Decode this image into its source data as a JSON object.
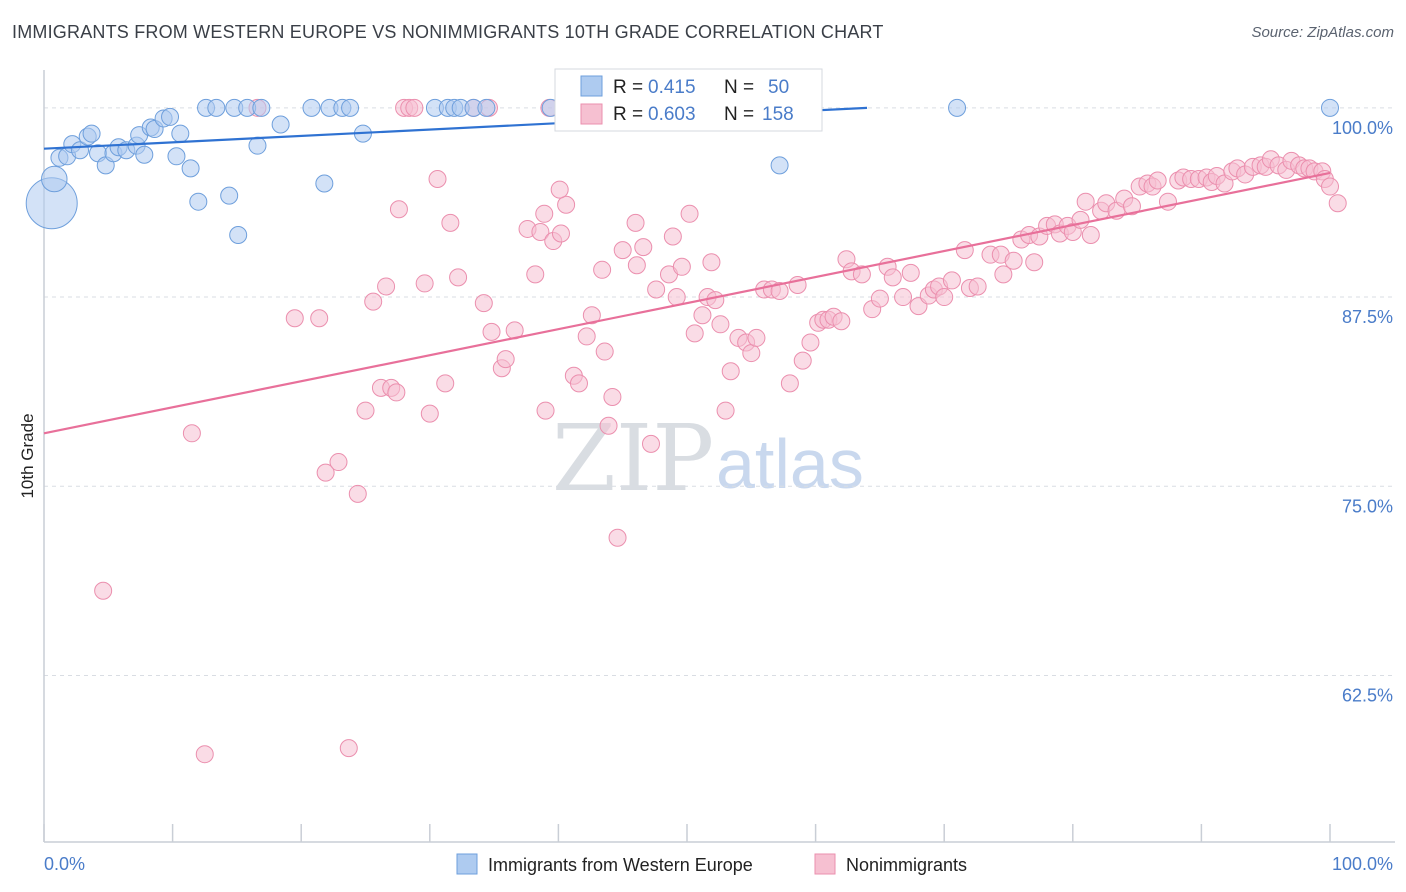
{
  "title": "IMMIGRANTS FROM WESTERN EUROPE VS NONIMMIGRANTS 10TH GRADE CORRELATION CHART",
  "source": "Source: ZipAtlas.com",
  "watermark": {
    "zip": "ZIP",
    "atlas": "atlas"
  },
  "colors": {
    "blue_fill": "#aecbf0",
    "blue_stroke": "#6e9fdc",
    "blue_line": "#2f72d2",
    "pink_fill": "#f6c0d1",
    "pink_stroke": "#eb8fae",
    "pink_line": "#e8709a",
    "grid": "#d9dde3",
    "tick_text": "#4a7cc9"
  },
  "stats_box": {
    "rows": [
      {
        "r_label": "R =",
        "r_value": "0.415",
        "n_label": "N =",
        "n_value": "50"
      },
      {
        "r_label": "R =",
        "r_value": "0.603",
        "n_label": "N =",
        "n_value": "158"
      }
    ]
  },
  "chart_data": {
    "type": "scatter",
    "title": "IMMIGRANTS FROM WESTERN EUROPE VS NONIMMIGRANTS 10TH GRADE CORRELATION CHART",
    "xlabel": "",
    "ylabel": "10th Grade",
    "xlim": [
      0,
      100
    ],
    "ylim": [
      51.5,
      102.5
    ],
    "x_tick_labels": [
      "0.0%",
      "100.0%"
    ],
    "y_ticks": [
      100.0,
      87.5,
      75.0,
      62.5
    ],
    "y_tick_labels": [
      "100.0%",
      "87.5%",
      "75.0%",
      "62.5%"
    ],
    "grid": true,
    "legend_position": "bottom-center",
    "series": [
      {
        "name": "Immigrants from Western Europe",
        "color": "#aecbf0",
        "trend": {
          "x": [
            0,
            64
          ],
          "y": [
            97.3,
            100.0
          ]
        },
        "points": [
          [
            0.6,
            93.7,
            3
          ],
          [
            0.8,
            95.3,
            1.5
          ],
          [
            1.2,
            96.7,
            1
          ],
          [
            1.8,
            96.8,
            1
          ],
          [
            2.2,
            97.6,
            1
          ],
          [
            2.8,
            97.2,
            1
          ],
          [
            3.4,
            98.1,
            1
          ],
          [
            3.7,
            98.3,
            1
          ],
          [
            4.2,
            97.0,
            1
          ],
          [
            4.8,
            96.2,
            1
          ],
          [
            5.4,
            97.0,
            1
          ],
          [
            5.8,
            97.4,
            1
          ],
          [
            6.4,
            97.2,
            1
          ],
          [
            7.2,
            97.5,
            1
          ],
          [
            7.8,
            96.9,
            1
          ],
          [
            7.4,
            98.2,
            1
          ],
          [
            8.3,
            98.7,
            1
          ],
          [
            8.6,
            98.6,
            1
          ],
          [
            9.3,
            99.3,
            1
          ],
          [
            9.8,
            99.4,
            1
          ],
          [
            10.3,
            96.8,
            1
          ],
          [
            10.6,
            98.3,
            1
          ],
          [
            11.4,
            96.0,
            1
          ],
          [
            12.0,
            93.8,
            1
          ],
          [
            12.6,
            100.0,
            1
          ],
          [
            13.4,
            100.0,
            1
          ],
          [
            14.4,
            94.2,
            1
          ],
          [
            14.8,
            100.0,
            1
          ],
          [
            15.1,
            91.6,
            1
          ],
          [
            15.8,
            100.0,
            1
          ],
          [
            16.6,
            97.5,
            1
          ],
          [
            16.9,
            100.0,
            1
          ],
          [
            18.4,
            98.9,
            1
          ],
          [
            20.8,
            100.0,
            1
          ],
          [
            21.8,
            95.0,
            1
          ],
          [
            22.2,
            100.0,
            1
          ],
          [
            23.2,
            100.0,
            1
          ],
          [
            23.8,
            100.0,
            1
          ],
          [
            24.8,
            98.3,
            1
          ],
          [
            30.4,
            100.0,
            1
          ],
          [
            31.4,
            100.0,
            1
          ],
          [
            31.9,
            100.0,
            1
          ],
          [
            32.4,
            100.0,
            1
          ],
          [
            33.4,
            100.0,
            1
          ],
          [
            34.4,
            100.0,
            1
          ],
          [
            39.4,
            100.0,
            1
          ],
          [
            49.6,
            100.0,
            1
          ],
          [
            57.2,
            96.2,
            1
          ],
          [
            71.0,
            100.0,
            1
          ],
          [
            100.0,
            100.0,
            1
          ]
        ]
      },
      {
        "name": "Nonimmigrants",
        "color": "#f6c0d1",
        "trend": {
          "x": [
            0,
            100
          ],
          "y": [
            78.5,
            95.7
          ]
        },
        "points": [
          [
            4.6,
            68.1,
            1
          ],
          [
            11.5,
            78.5,
            1
          ],
          [
            12.5,
            57.3,
            1
          ],
          [
            16.6,
            100.0,
            1
          ],
          [
            19.5,
            86.1,
            1
          ],
          [
            21.4,
            86.1,
            1
          ],
          [
            21.9,
            75.9,
            1
          ],
          [
            22.9,
            76.6,
            1
          ],
          [
            23.7,
            57.7,
            1
          ],
          [
            24.4,
            74.5,
            1
          ],
          [
            25.0,
            80.0,
            1
          ],
          [
            25.6,
            87.2,
            1
          ],
          [
            26.2,
            81.5,
            1
          ],
          [
            26.6,
            88.2,
            1
          ],
          [
            27.0,
            81.5,
            1
          ],
          [
            27.4,
            81.2,
            1
          ],
          [
            27.6,
            93.3,
            1
          ],
          [
            28.0,
            100.0,
            1
          ],
          [
            28.4,
            100.0,
            1
          ],
          [
            28.8,
            100.0,
            1
          ],
          [
            29.6,
            88.4,
            1
          ],
          [
            30.0,
            79.8,
            1
          ],
          [
            30.6,
            95.3,
            1
          ],
          [
            31.2,
            81.8,
            1
          ],
          [
            31.6,
            92.4,
            1
          ],
          [
            32.2,
            88.8,
            1
          ],
          [
            33.4,
            100.0,
            1
          ],
          [
            34.2,
            87.1,
            1
          ],
          [
            34.6,
            100.0,
            1
          ],
          [
            34.8,
            85.2,
            1
          ],
          [
            35.6,
            82.8,
            1
          ],
          [
            35.9,
            83.4,
            1
          ],
          [
            36.6,
            85.3,
            1
          ],
          [
            37.6,
            92.0,
            1
          ],
          [
            38.2,
            89.0,
            1
          ],
          [
            38.6,
            91.8,
            1
          ],
          [
            38.9,
            93.0,
            1
          ],
          [
            39.6,
            91.2,
            1
          ],
          [
            40.2,
            91.7,
            1
          ],
          [
            40.6,
            93.6,
            1
          ],
          [
            39.0,
            80.0,
            1
          ],
          [
            39.3,
            100.0,
            1
          ],
          [
            40.1,
            94.6,
            1
          ],
          [
            41.2,
            82.3,
            1
          ],
          [
            41.6,
            81.8,
            1
          ],
          [
            42.2,
            84.9,
            1
          ],
          [
            42.6,
            86.3,
            1
          ],
          [
            43.4,
            89.3,
            1
          ],
          [
            43.6,
            83.9,
            1
          ],
          [
            43.9,
            79.0,
            1
          ],
          [
            44.2,
            80.9,
            1
          ],
          [
            44.6,
            71.6,
            1
          ],
          [
            45.0,
            90.6,
            1
          ],
          [
            46.0,
            92.4,
            1
          ],
          [
            46.1,
            89.6,
            1
          ],
          [
            46.6,
            90.8,
            1
          ],
          [
            47.2,
            77.8,
            1
          ],
          [
            47.6,
            88.0,
            1
          ],
          [
            48.6,
            89.0,
            1
          ],
          [
            48.9,
            91.5,
            1
          ],
          [
            49.2,
            87.5,
            1
          ],
          [
            49.6,
            89.5,
            1
          ],
          [
            50.2,
            93.0,
            1
          ],
          [
            50.6,
            85.1,
            1
          ],
          [
            51.2,
            86.3,
            1
          ],
          [
            51.6,
            87.5,
            1
          ],
          [
            51.9,
            89.8,
            1
          ],
          [
            52.2,
            87.3,
            1
          ],
          [
            52.6,
            85.7,
            1
          ],
          [
            53.0,
            80.0,
            1
          ],
          [
            53.4,
            82.6,
            1
          ],
          [
            54.0,
            84.8,
            1
          ],
          [
            54.6,
            84.5,
            1
          ],
          [
            55.0,
            83.8,
            1
          ],
          [
            55.4,
            84.8,
            1
          ],
          [
            56.0,
            88.0,
            1
          ],
          [
            56.6,
            88.0,
            1
          ],
          [
            57.2,
            87.9,
            1
          ],
          [
            58.0,
            81.8,
            1
          ],
          [
            58.6,
            88.3,
            1
          ],
          [
            59.0,
            83.3,
            1
          ],
          [
            59.6,
            84.5,
            1
          ],
          [
            60.2,
            85.8,
            1
          ],
          [
            60.6,
            86.0,
            1
          ],
          [
            61.0,
            86.0,
            1
          ],
          [
            61.4,
            86.2,
            1
          ],
          [
            62.0,
            85.9,
            1
          ],
          [
            62.4,
            90.0,
            1
          ],
          [
            62.8,
            89.2,
            1
          ],
          [
            63.6,
            89.0,
            1
          ],
          [
            64.4,
            86.7,
            1
          ],
          [
            65.0,
            87.4,
            1
          ],
          [
            65.6,
            89.5,
            1
          ],
          [
            66.0,
            88.8,
            1
          ],
          [
            66.8,
            87.5,
            1
          ],
          [
            67.4,
            89.1,
            1
          ],
          [
            68.0,
            86.9,
            1
          ],
          [
            68.8,
            87.6,
            1
          ],
          [
            69.2,
            88.0,
            1
          ],
          [
            69.6,
            88.2,
            1
          ],
          [
            70.0,
            87.5,
            1
          ],
          [
            70.6,
            88.6,
            1
          ],
          [
            71.6,
            90.6,
            1
          ],
          [
            72.0,
            88.1,
            1
          ],
          [
            72.6,
            88.2,
            1
          ],
          [
            73.6,
            90.3,
            1
          ],
          [
            74.4,
            90.3,
            1
          ],
          [
            74.6,
            89.0,
            1
          ],
          [
            75.4,
            89.9,
            1
          ],
          [
            76.0,
            91.3,
            1
          ],
          [
            76.6,
            91.6,
            1
          ],
          [
            77.0,
            89.8,
            1
          ],
          [
            77.4,
            91.5,
            1
          ],
          [
            78.0,
            92.2,
            1
          ],
          [
            78.6,
            92.3,
            1
          ],
          [
            79.0,
            91.7,
            1
          ],
          [
            79.6,
            92.2,
            1
          ],
          [
            80.0,
            91.8,
            1
          ],
          [
            80.6,
            92.6,
            1
          ],
          [
            81.0,
            93.8,
            1
          ],
          [
            81.4,
            91.6,
            1
          ],
          [
            82.2,
            93.2,
            1
          ],
          [
            82.6,
            93.7,
            1
          ],
          [
            83.4,
            93.2,
            1
          ],
          [
            84.0,
            94.0,
            1
          ],
          [
            84.6,
            93.5,
            1
          ],
          [
            85.2,
            94.8,
            1
          ],
          [
            85.8,
            95.0,
            1
          ],
          [
            86.2,
            94.8,
            1
          ],
          [
            86.6,
            95.2,
            1
          ],
          [
            87.4,
            93.8,
            1
          ],
          [
            88.2,
            95.2,
            1
          ],
          [
            88.6,
            95.4,
            1
          ],
          [
            89.2,
            95.3,
            1
          ],
          [
            89.8,
            95.3,
            1
          ],
          [
            90.4,
            95.4,
            1
          ],
          [
            90.8,
            95.1,
            1
          ],
          [
            91.2,
            95.5,
            1
          ],
          [
            91.8,
            95.0,
            1
          ],
          [
            92.4,
            95.8,
            1
          ],
          [
            92.8,
            96.0,
            1
          ],
          [
            93.4,
            95.6,
            1
          ],
          [
            94.0,
            96.1,
            1
          ],
          [
            94.6,
            96.2,
            1
          ],
          [
            95.0,
            96.1,
            1
          ],
          [
            95.4,
            96.6,
            1
          ],
          [
            96.0,
            96.2,
            1
          ],
          [
            96.6,
            95.9,
            1
          ],
          [
            97.0,
            96.5,
            1
          ],
          [
            97.6,
            96.2,
            1
          ],
          [
            98.0,
            96.0,
            1
          ],
          [
            98.4,
            96.0,
            1
          ],
          [
            98.8,
            95.8,
            1
          ],
          [
            99.4,
            95.8,
            1
          ],
          [
            99.6,
            95.3,
            1
          ],
          [
            100.0,
            94.8,
            1
          ],
          [
            100.6,
            93.7,
            1
          ],
          [
            50.6,
            100.0,
            1
          ]
        ]
      }
    ]
  },
  "legend": {
    "items": [
      {
        "label": "Immigrants from Western Europe",
        "swatch": "#aecbf0"
      },
      {
        "label": "Nonimmigrants",
        "swatch": "#f6c0d1"
      }
    ]
  }
}
